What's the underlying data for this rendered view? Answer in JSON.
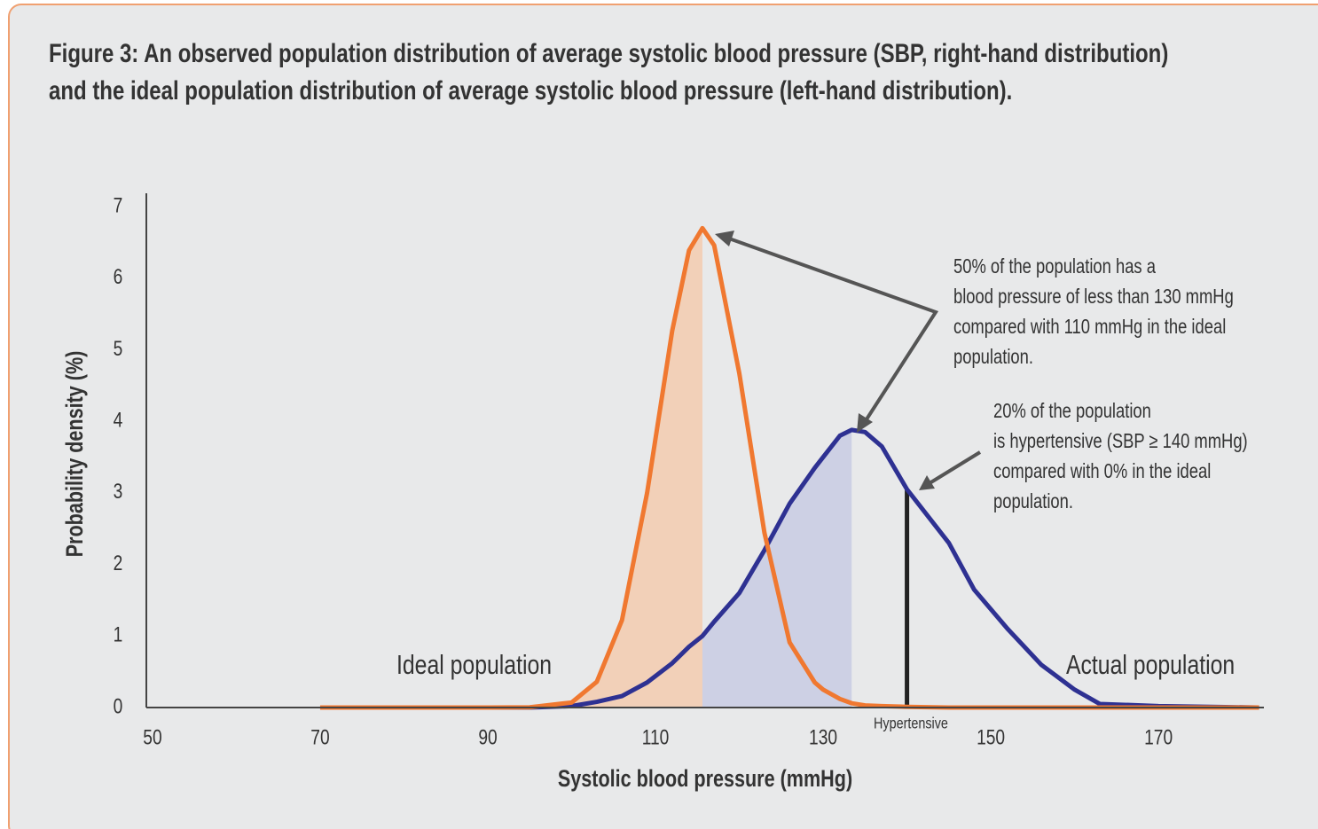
{
  "chart_data": {
    "type": "line",
    "title": [
      "Figure 3: An observed population distribution of average systolic blood pressure (SBP, right-hand distribution)",
      "and the ideal population distribution of average systolic blood pressure (left-hand distribution)."
    ],
    "xlabel": "Systolic blood pressure (mmHg)",
    "ylabel": "Probability density (%)",
    "x": [
      70,
      80,
      90,
      95,
      100,
      103,
      106,
      109,
      112,
      114,
      115.6,
      117,
      120,
      123,
      126,
      129,
      130,
      132,
      133.4,
      135,
      137,
      140,
      145,
      148,
      152,
      156,
      160,
      163,
      170,
      182
    ],
    "series": [
      {
        "name": "Ideal population",
        "color": "#f07830",
        "fill": "#f2d0b8",
        "shade": [
          70,
          115.6
        ],
        "values": [
          0,
          0,
          0,
          0.003,
          0.07,
          0.36,
          1.22,
          3.0,
          5.27,
          6.39,
          6.7,
          6.46,
          4.67,
          2.44,
          0.91,
          0.35,
          0.25,
          0.12,
          0.06,
          0.03,
          0.02,
          0.01,
          0,
          0,
          0,
          0,
          0,
          0,
          0,
          0
        ]
      },
      {
        "name": "Actual population",
        "color": "#2e3192",
        "fill": "#cdd0e4",
        "shade": [
          115.6,
          133.4
        ],
        "values": [
          0,
          0,
          0,
          0,
          0.02,
          0.08,
          0.16,
          0.35,
          0.62,
          0.85,
          1.0,
          1.2,
          1.6,
          2.2,
          2.85,
          3.35,
          3.5,
          3.8,
          3.88,
          3.85,
          3.65,
          3.05,
          2.3,
          1.65,
          1.1,
          0.6,
          0.25,
          0.05,
          0.02,
          0
        ]
      }
    ],
    "threshold": {
      "x": 140,
      "label": "Hypertensive"
    },
    "annotations": [
      [
        "50% of the population has a",
        "blood pressure of less than 130 mmHg",
        "compared with 110 mmHg in the ideal",
        "population."
      ],
      [
        "20% of the population",
        "is hypertensive (SBP ≥ 140 mmHg)",
        "compared with 0% in the ideal",
        "population."
      ]
    ],
    "xlim": [
      49,
      183
    ],
    "ylim": [
      0,
      7.2
    ],
    "xticks": [
      50,
      70,
      90,
      110,
      130,
      150,
      170
    ],
    "yticks": [
      0,
      1,
      2,
      3,
      4,
      5,
      6,
      7
    ]
  }
}
